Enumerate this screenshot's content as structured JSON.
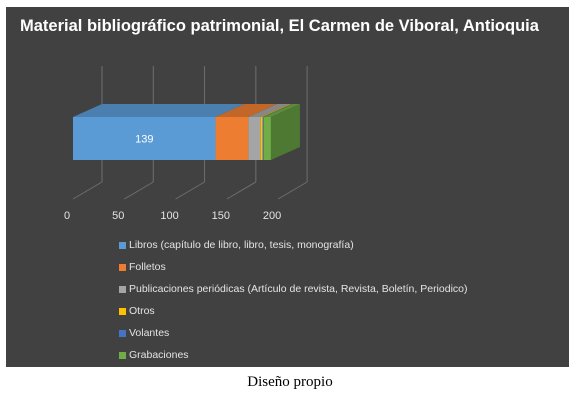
{
  "chart_data": {
    "type": "bar",
    "orientation": "horizontal-stacked-3d",
    "title": "Material bibliográfico patrimonial, El Carmen de Viboral, Antioquia",
    "xlabel": "",
    "ylabel": "",
    "xlim": [
      0,
      200
    ],
    "x_ticks": [
      "0",
      "50",
      "100",
      "150",
      "200"
    ],
    "grid": true,
    "legend_position": "bottom",
    "series": [
      {
        "name": "Libros (capítulo de libro, libro, tesis, monografía)",
        "value": 139,
        "label": "139",
        "color": "#5b9bd5"
      },
      {
        "name": "Folletos",
        "value": 32,
        "color": "#ed7d31"
      },
      {
        "name": "Publicaciones periódicas (Artículo de revista, Revista, Boletín, Periodico)",
        "value": 12,
        "color": "#a5a5a5"
      },
      {
        "name": "Otros",
        "value": 2,
        "color": "#ffc000"
      },
      {
        "name": "Volantes",
        "value": 1,
        "color": "#4472c4"
      },
      {
        "name": "Grabaciones",
        "value": 7,
        "color": "#70ad47"
      }
    ]
  },
  "caption": "Diseño propio",
  "colors": {
    "panel_background": "#414141",
    "gridline": "#6e6e6e",
    "tick_text": "#e4e4e4",
    "title_text": "#ffffff"
  }
}
